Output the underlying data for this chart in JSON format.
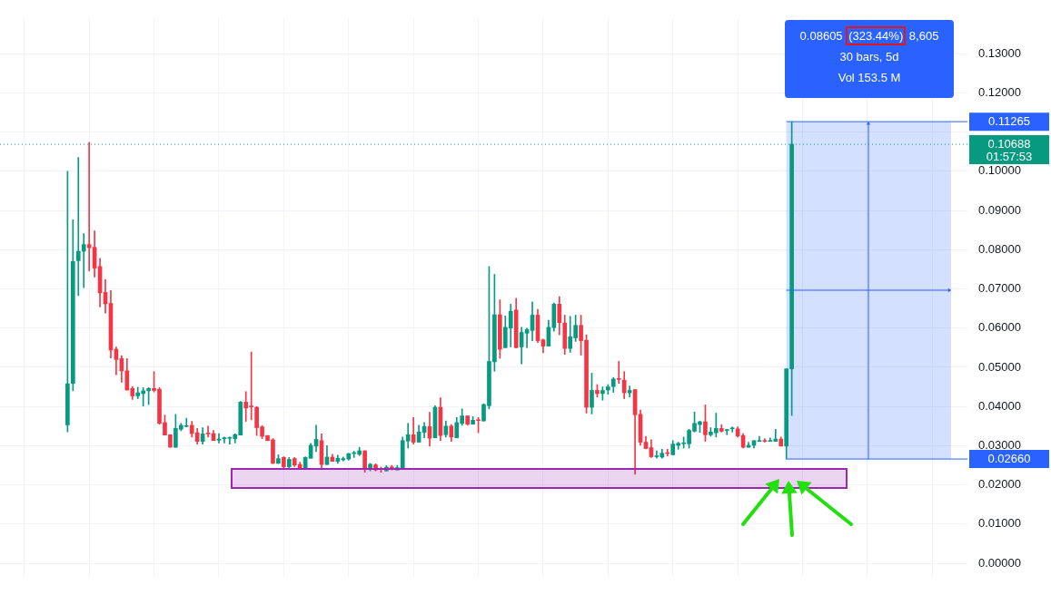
{
  "chart_data": {
    "type": "candlestick",
    "categories": [
      null,
      null,
      null,
      null,
      null,
      null,
      null,
      null,
      null,
      null,
      null,
      null,
      null,
      null,
      null,
      null,
      null,
      null,
      null,
      null,
      null,
      null,
      null,
      null,
      null,
      null,
      null,
      null,
      null,
      null,
      null,
      null,
      null,
      null,
      null,
      null,
      null,
      null,
      null,
      null,
      null,
      null,
      null,
      null,
      null,
      null,
      null,
      null,
      null,
      null,
      null,
      null,
      null,
      null,
      null,
      null,
      null,
      null,
      null,
      null,
      null,
      null,
      null,
      null,
      null,
      null,
      null,
      null,
      null,
      null,
      null,
      null,
      null,
      null,
      null,
      null,
      null,
      null,
      null,
      null,
      null,
      null,
      null,
      null,
      null,
      null,
      null,
      null,
      null,
      null,
      null,
      null,
      null,
      null,
      null,
      null,
      null,
      null,
      null,
      null,
      null,
      null,
      null,
      null,
      null,
      null,
      null,
      null,
      null,
      null,
      null,
      null,
      null,
      null,
      null,
      null,
      null,
      null,
      null,
      null,
      null,
      null,
      null,
      null,
      null,
      null,
      null,
      null,
      null,
      null,
      null,
      null,
      null,
      null,
      null,
      null,
      null,
      null,
      null,
      null,
      null,
      null,
      null,
      null,
      null,
      null,
      null,
      null,
      null,
      null,
      null,
      null,
      null,
      null,
      null,
      null,
      null,
      null,
      null,
      null,
      null,
      null,
      null,
      null,
      null,
      null,
      null,
      null,
      null,
      null,
      null,
      null,
      null,
      null,
      null,
      null,
      null,
      null,
      null
    ],
    "ohlc": [
      null,
      null,
      null,
      null,
      null,
      null,
      null,
      null,
      null,
      null,
      null,
      null,
      [
        0.0353,
        0.1,
        0.0335,
        0.0458
      ],
      [
        0.0459,
        0.0876,
        0.044,
        0.077
      ],
      [
        0.0772,
        0.1035,
        0.0683,
        0.0796
      ],
      [
        0.0796,
        0.0841,
        0.0703,
        0.0813
      ],
      [
        0.0813,
        0.1074,
        0.0746,
        0.0805
      ],
      [
        0.0806,
        0.0848,
        0.073,
        0.0753
      ],
      [
        0.0757,
        0.0778,
        0.0654,
        0.069
      ],
      [
        0.0691,
        0.0724,
        0.0638,
        0.0662
      ],
      [
        0.0663,
        0.0696,
        0.0524,
        0.0544
      ],
      [
        0.0546,
        0.0552,
        0.0481,
        0.052
      ],
      [
        0.0522,
        0.053,
        0.0462,
        0.0491
      ],
      [
        0.0491,
        0.0522,
        0.0442,
        0.0442
      ],
      [
        0.0446,
        0.0451,
        0.0418,
        0.0427
      ],
      [
        0.0427,
        0.0449,
        0.042,
        0.0435
      ],
      [
        0.0433,
        0.0448,
        0.0401,
        0.044
      ],
      [
        0.044,
        0.0448,
        0.0405,
        0.0446
      ],
      [
        0.0446,
        0.0489,
        0.0437,
        0.0441
      ],
      [
        0.0444,
        0.0448,
        0.0355,
        0.0357
      ],
      [
        0.0359,
        0.0378,
        0.0327,
        0.0327
      ],
      [
        0.0328,
        0.0328,
        0.0296,
        0.0296
      ],
      [
        0.0296,
        0.038,
        0.0296,
        0.0344
      ],
      [
        0.0342,
        0.0357,
        0.0338,
        0.0352
      ],
      [
        0.0349,
        0.037,
        0.0348,
        0.0351
      ],
      [
        0.0352,
        0.0362,
        0.0322,
        0.0331
      ],
      [
        0.0333,
        0.0344,
        0.0304,
        0.0311
      ],
      [
        0.0311,
        0.0346,
        0.0304,
        0.033
      ],
      [
        0.0332,
        0.035,
        0.0322,
        0.033
      ],
      [
        0.0331,
        0.0339,
        0.0313,
        0.0313
      ],
      [
        0.0314,
        0.0331,
        0.0307,
        0.0317
      ],
      [
        0.0318,
        0.0322,
        0.0307,
        0.0319
      ],
      [
        0.0319,
        0.0322,
        0.0304,
        0.032
      ],
      [
        0.0318,
        0.033,
        0.0307,
        0.0328
      ],
      [
        0.0327,
        0.0413,
        0.0327,
        0.0411
      ],
      [
        0.0411,
        0.0438,
        0.0362,
        0.0396
      ],
      [
        0.04,
        0.0539,
        0.0366,
        0.0399
      ],
      [
        0.0398,
        0.04,
        0.0326,
        0.0346
      ],
      [
        0.0348,
        0.0351,
        0.0318,
        0.0324
      ],
      [
        0.0326,
        0.0326,
        0.0313,
        0.0313
      ],
      [
        0.0315,
        0.0318,
        0.0255,
        0.0255
      ],
      [
        0.0255,
        0.0277,
        0.0255,
        0.0267
      ],
      [
        0.027,
        0.0272,
        0.0242,
        0.0246
      ],
      [
        0.0246,
        0.027,
        0.0244,
        0.0265
      ],
      [
        0.0267,
        0.027,
        0.0247,
        0.0251
      ],
      [
        0.0252,
        0.0258,
        0.024,
        0.0242
      ],
      [
        0.0242,
        0.0272,
        0.0242,
        0.027
      ],
      [
        0.0268,
        0.0306,
        0.0268,
        0.0301
      ],
      [
        0.0299,
        0.0352,
        0.0285,
        0.0316
      ],
      [
        0.0313,
        0.033,
        0.0242,
        0.0252
      ],
      [
        0.0252,
        0.03,
        0.0252,
        0.0271
      ],
      [
        0.0271,
        0.0278,
        0.026,
        0.026
      ],
      [
        0.026,
        0.0276,
        0.0255,
        0.0268
      ],
      [
        0.0264,
        0.0271,
        0.0261,
        0.0267
      ],
      [
        0.0266,
        0.028,
        0.0263,
        0.028
      ],
      [
        0.028,
        0.0286,
        0.027,
        0.0281
      ],
      [
        0.0278,
        0.0296,
        0.0275,
        0.0287
      ],
      [
        0.0287,
        0.0287,
        0.0232,
        0.0242
      ],
      [
        0.024,
        0.0255,
        0.0236,
        0.0253
      ],
      [
        0.0251,
        0.0254,
        0.0236,
        0.0238
      ],
      [
        0.0241,
        0.0246,
        0.0232,
        0.0239
      ],
      [
        0.0236,
        0.0249,
        0.0236,
        0.0245
      ],
      [
        0.0246,
        0.025,
        0.0238,
        0.0239
      ],
      [
        0.0238,
        0.025,
        0.0238,
        0.0244
      ],
      [
        0.0242,
        0.0322,
        0.0242,
        0.0313
      ],
      [
        0.0312,
        0.0357,
        0.0294,
        0.0328
      ],
      [
        0.0328,
        0.0372,
        0.0304,
        0.0309
      ],
      [
        0.0309,
        0.0352,
        0.0309,
        0.0335
      ],
      [
        0.0334,
        0.0359,
        0.032,
        0.0349
      ],
      [
        0.0349,
        0.0385,
        0.0299,
        0.0319
      ],
      [
        0.032,
        0.0402,
        0.032,
        0.0398
      ],
      [
        0.0398,
        0.0422,
        0.0313,
        0.0326
      ],
      [
        0.0328,
        0.0363,
        0.0322,
        0.035
      ],
      [
        0.035,
        0.0354,
        0.0311,
        0.0322
      ],
      [
        0.032,
        0.0372,
        0.032,
        0.0359
      ],
      [
        0.0357,
        0.0394,
        0.0352,
        0.0376
      ],
      [
        0.0376,
        0.0376,
        0.0352,
        0.0355
      ],
      [
        0.0355,
        0.0374,
        0.0355,
        0.0365
      ],
      [
        0.0365,
        0.0372,
        0.0333,
        0.0364
      ],
      [
        0.0363,
        0.0407,
        0.0363,
        0.0405
      ],
      [
        0.0402,
        0.0757,
        0.0394,
        0.0515
      ],
      [
        0.0514,
        0.0737,
        0.049,
        0.0634
      ],
      [
        0.0634,
        0.0672,
        0.0523,
        0.0546
      ],
      [
        0.055,
        0.0631,
        0.055,
        0.0602
      ],
      [
        0.06,
        0.0661,
        0.0552,
        0.0643
      ],
      [
        0.0646,
        0.0676,
        0.055,
        0.055
      ],
      [
        0.0552,
        0.0602,
        0.0509,
        0.0589
      ],
      [
        0.0587,
        0.06,
        0.055,
        0.0596
      ],
      [
        0.0594,
        0.0667,
        0.0568,
        0.0633
      ],
      [
        0.0633,
        0.0648,
        0.0563,
        0.0568
      ],
      [
        0.057,
        0.0572,
        0.0537,
        0.0554
      ],
      [
        0.0554,
        0.062,
        0.0554,
        0.0602
      ],
      [
        0.0601,
        0.0664,
        0.0592,
        0.0661
      ],
      [
        0.0661,
        0.068,
        0.0583,
        0.0614
      ],
      [
        0.0613,
        0.0633,
        0.0533,
        0.0548
      ],
      [
        0.0548,
        0.063,
        0.0538,
        0.0578
      ],
      [
        0.0575,
        0.0633,
        0.0566,
        0.0607
      ],
      [
        0.0607,
        0.0633,
        0.0531,
        0.0568
      ],
      [
        0.0569,
        0.0583,
        0.0383,
        0.0398
      ],
      [
        0.0398,
        0.0485,
        0.0381,
        0.0441
      ],
      [
        0.0441,
        0.0456,
        0.0424,
        0.0433
      ],
      [
        0.0433,
        0.045,
        0.0416,
        0.0441
      ],
      [
        0.0442,
        0.0456,
        0.0431,
        0.045
      ],
      [
        0.0451,
        0.0474,
        0.0436,
        0.047
      ],
      [
        0.047,
        0.0515,
        0.0459,
        0.0469
      ],
      [
        0.0467,
        0.0489,
        0.042,
        0.0435
      ],
      [
        0.0435,
        0.0452,
        0.0424,
        0.0441
      ],
      [
        0.0443,
        0.0443,
        0.0227,
        0.0379
      ],
      [
        0.038,
        0.0391,
        0.0301,
        0.0309
      ],
      [
        0.0309,
        0.0324,
        0.0292,
        0.0293
      ],
      [
        0.0295,
        0.0315,
        0.027,
        0.0272
      ],
      [
        0.0272,
        0.0287,
        0.0268,
        0.0274
      ],
      [
        0.0271,
        0.0291,
        0.0268,
        0.0281
      ],
      [
        0.0282,
        0.0291,
        0.0274,
        0.028
      ],
      [
        0.0277,
        0.0313,
        0.0277,
        0.0304
      ],
      [
        0.0301,
        0.0309,
        0.0291,
        0.0306
      ],
      [
        0.0305,
        0.0322,
        0.0294,
        0.0306
      ],
      [
        0.0305,
        0.0342,
        0.0294,
        0.0339
      ],
      [
        0.0337,
        0.0386,
        0.0335,
        0.0357
      ],
      [
        0.0354,
        0.0363,
        0.0334,
        0.0361
      ],
      [
        0.0361,
        0.0404,
        0.0311,
        0.0328
      ],
      [
        0.0328,
        0.0346,
        0.0324,
        0.0335
      ],
      [
        0.0333,
        0.0383,
        0.0322,
        0.0344
      ],
      [
        0.0344,
        0.0354,
        0.0335,
        0.0337
      ],
      [
        0.0339,
        0.0341,
        0.0328,
        0.034
      ],
      [
        0.0343,
        0.0348,
        0.0335,
        0.0345
      ],
      [
        0.0343,
        0.0348,
        0.0322,
        0.0325
      ],
      [
        0.0326,
        0.0331,
        0.0294,
        0.0296
      ],
      [
        0.0296,
        0.0309,
        0.0296,
        0.0301
      ],
      [
        0.0301,
        0.0313,
        0.0294,
        0.0313
      ],
      [
        0.0311,
        0.0324,
        0.0311,
        0.0313
      ],
      [
        0.0313,
        0.0318,
        0.0309,
        0.0311
      ],
      [
        0.0311,
        0.032,
        0.0311,
        0.0313
      ],
      [
        0.0311,
        0.0342,
        0.0311,
        0.0317
      ],
      [
        0.0317,
        0.0322,
        0.0299,
        0.0299
      ],
      [
        0.0299,
        0.0496,
        0.0266,
        0.0496
      ],
      [
        0.0496,
        0.11265,
        0.0377,
        0.10688
      ],
      null,
      null,
      null,
      null,
      null,
      null,
      null,
      null,
      null,
      null,
      null,
      null,
      null,
      null,
      null,
      null,
      null,
      null,
      null,
      null,
      null,
      null,
      null,
      null,
      null,
      null,
      null,
      null,
      null,
      null,
      null,
      null
    ],
    "ylim": [
      -0.0035,
      0.1391
    ],
    "yticks": [
      {
        "value": 0,
        "label": "0.00000"
      },
      {
        "value": 0.01,
        "label": "0.01000"
      },
      {
        "value": 0.02,
        "label": "0.02000"
      },
      {
        "value": 0.03,
        "label": "0.03000"
      },
      {
        "value": 0.04,
        "label": "0.04000"
      },
      {
        "value": 0.05,
        "label": "0.05000"
      },
      {
        "value": 0.06,
        "label": "0.06000"
      },
      {
        "value": 0.07,
        "label": "0.07000"
      },
      {
        "value": 0.08,
        "label": "0.08000"
      },
      {
        "value": 0.09,
        "label": "0.09000"
      },
      {
        "value": 0.1,
        "label": "0.10000"
      },
      {
        "value": 0.11,
        "label": null
      },
      {
        "value": 0.12,
        "label": "0.12000"
      },
      {
        "value": 0.13,
        "label": "0.13000"
      }
    ],
    "grid": true,
    "legend": false,
    "ref_lines": [
      {
        "axis": "y",
        "value": 0.10688,
        "label": "0.10688",
        "color": "#089981",
        "line_style": "dotted"
      },
      {
        "axis": "y",
        "value": 0.11265,
        "label": "0.11265",
        "color": "#2962ff"
      },
      {
        "axis": "y",
        "value": 0.0266,
        "label": "0.02660",
        "color": "#2962ff"
      }
    ],
    "bands": [
      {
        "axis": "y",
        "from": 0.0266,
        "to": 0.11265,
        "color": "#2962ff"
      }
    ],
    "annotations": [
      "0.08605",
      "(323.44%)",
      "8,605",
      "30 bars, 5d",
      "Vol 153.5 M",
      "01:57:53"
    ]
  }
}
